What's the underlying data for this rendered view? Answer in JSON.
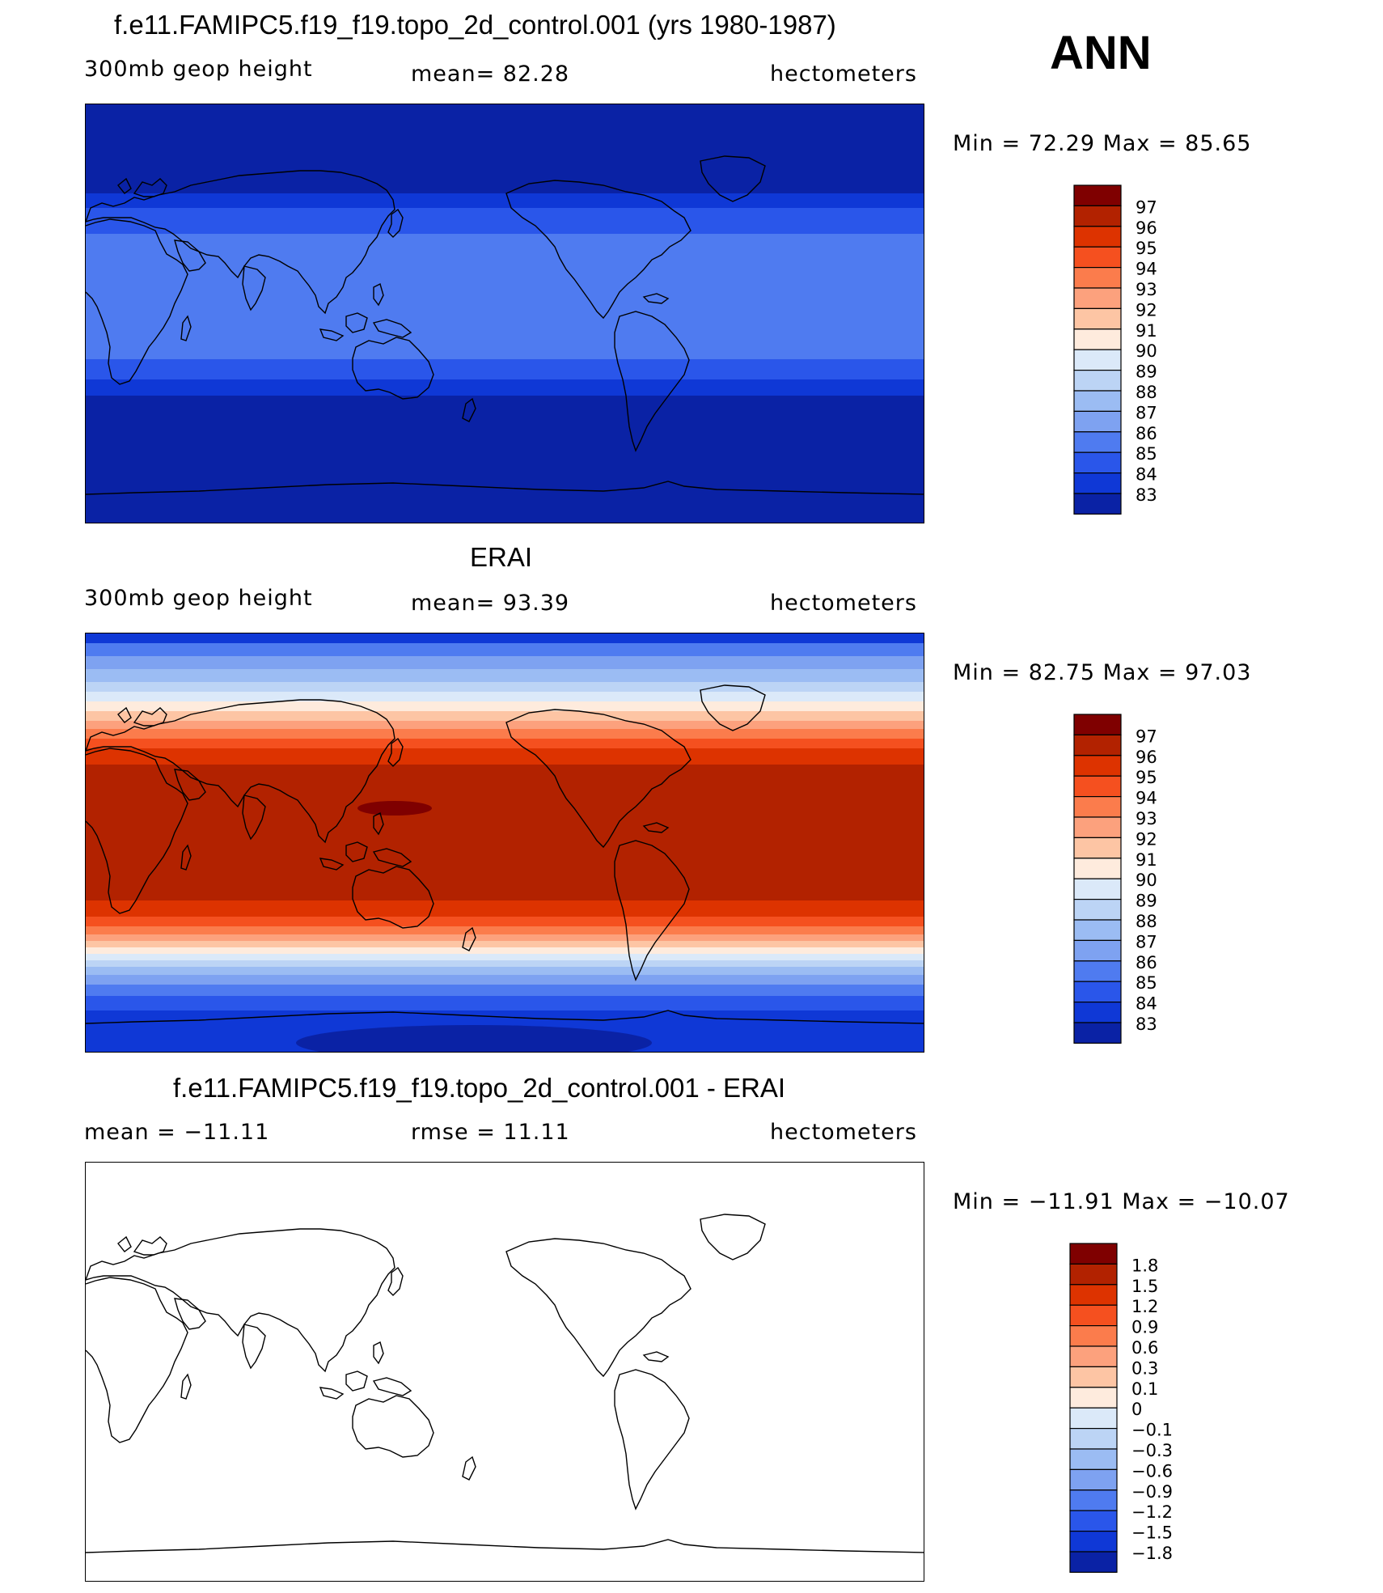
{
  "season": "ANN",
  "panels": [
    {
      "id": "model",
      "title": "f.e11.FAMIPC5.f19_f19.topo_2d_control.001 (yrs 1980-1987)",
      "left": "300mb  geop  height",
      "center": "mean=   82.28",
      "right": "hectometers",
      "minmax": "Min  =    72.29  Max  =    85.65",
      "colorbar_labels": [
        "97",
        "96",
        "95",
        "94",
        "93",
        "92",
        "91",
        "90",
        "89",
        "88",
        "87",
        "86",
        "85",
        "84",
        "83"
      ]
    },
    {
      "id": "obs",
      "title": "ERAI",
      "left": "300mb  geop  height",
      "center": "mean=   93.39",
      "right": "hectometers",
      "minmax": "Min  =    82.75  Max  =    97.03",
      "colorbar_labels": [
        "97",
        "96",
        "95",
        "94",
        "93",
        "92",
        "91",
        "90",
        "89",
        "88",
        "87",
        "86",
        "85",
        "84",
        "83"
      ]
    },
    {
      "id": "diff",
      "title": "f.e11.FAMIPC5.f19_f19.topo_2d_control.001 - ERAI",
      "left": "mean  =  −11.11",
      "center": "rmse  =    11.11",
      "right": "hectometers",
      "minmax": "Min  =  −11.91  Max  =  −10.07",
      "colorbar_labels": [
        "1.8",
        "1.5",
        "1.2",
        "0.9",
        "0.6",
        "0.3",
        "0.1",
        "0",
        "−0.1",
        "−0.3",
        "−0.6",
        "−0.9",
        "−1.2",
        "−1.5",
        "−1.8"
      ]
    }
  ],
  "palette": [
    "#7f0000",
    "#b22200",
    "#dd3300",
    "#f5501f",
    "#fb7c4c",
    "#fca17d",
    "#fdc5a4",
    "#feebdd",
    "#dbe9f9",
    "#bcd4f5",
    "#9bbcf3",
    "#7ea2f1",
    "#4f7bf0",
    "#2a56ea",
    "#0f38d6",
    "#0a22a5"
  ]
}
